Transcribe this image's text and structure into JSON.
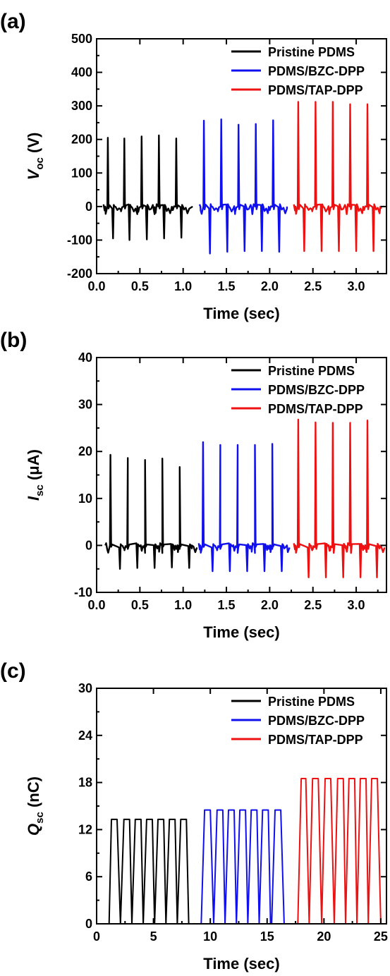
{
  "figure": {
    "panels": [
      {
        "label": "(a)",
        "ylabel_main": "V",
        "ylabel_sub": "oc",
        "ylabel_unit": " (V)",
        "xlabel": "Time (sec)"
      },
      {
        "label": "(b)",
        "ylabel_main": "I",
        "ylabel_sub": "sc",
        "ylabel_unit": " (μA)",
        "xlabel": "Time (sec)"
      },
      {
        "label": "(c)",
        "ylabel_main": "Q",
        "ylabel_sub": "sc",
        "ylabel_unit": " (nC)",
        "xlabel": "Time (sec)"
      }
    ]
  },
  "colors": {
    "Pristine PDMS": "#000000",
    "PDMS/BZC-DPP": "#1010ee",
    "PDMS/TAP-DPP": "#ee1111"
  },
  "chart_data": [
    {
      "type": "line",
      "xlabel": "Time (sec)",
      "ylabel": "Voc (V)",
      "xlim": [
        0.0,
        3.35
      ],
      "ylim": [
        -200,
        500
      ],
      "xticks": [
        "0.0",
        "0.5",
        "1.0",
        "1.5",
        "2.0",
        "2.5",
        "3.0"
      ],
      "xtick_values": [
        0.0,
        0.5,
        1.0,
        1.5,
        2.0,
        2.5,
        3.0
      ],
      "yticks": [
        "-200",
        "-100",
        "0",
        "100",
        "200",
        "300",
        "400",
        "500"
      ],
      "ytick_values": [
        -200,
        -100,
        0,
        100,
        200,
        300,
        400,
        500
      ],
      "legend": "top-right",
      "grid": false,
      "series": [
        {
          "name": "Pristine PDMS",
          "range": [
            0.1,
            1.11
          ],
          "pulses": [
            {
              "t": 0.13,
              "peak": 205,
              "neg_t": 0.19,
              "neg": -95
            },
            {
              "t": 0.32,
              "peak": 203,
              "neg_t": 0.38,
              "neg": -100
            },
            {
              "t": 0.52,
              "peak": 209,
              "neg_t": 0.58,
              "neg": -98
            },
            {
              "t": 0.72,
              "peak": 212,
              "neg_t": 0.78,
              "neg": -95
            },
            {
              "t": 0.92,
              "peak": 203,
              "neg_t": 0.98,
              "neg": -93
            }
          ]
        },
        {
          "name": "PDMS/BZC-DPP",
          "range": [
            1.2,
            2.2
          ],
          "pulses": [
            {
              "t": 1.24,
              "peak": 256,
              "neg_t": 1.31,
              "neg": -140
            },
            {
              "t": 1.44,
              "peak": 260,
              "neg_t": 1.51,
              "neg": -135
            },
            {
              "t": 1.64,
              "peak": 244,
              "neg_t": 1.71,
              "neg": -133
            },
            {
              "t": 1.84,
              "peak": 246,
              "neg_t": 1.91,
              "neg": -133
            },
            {
              "t": 2.04,
              "peak": 257,
              "neg_t": 2.11,
              "neg": -135
            }
          ]
        },
        {
          "name": "PDMS/TAP-DPP",
          "range": [
            2.3,
            3.28
          ],
          "pulses": [
            {
              "t": 2.33,
              "peak": 312,
              "neg_t": 2.4,
              "neg": -133
            },
            {
              "t": 2.53,
              "peak": 312,
              "neg_t": 2.6,
              "neg": -133
            },
            {
              "t": 2.73,
              "peak": 312,
              "neg_t": 2.8,
              "neg": -133
            },
            {
              "t": 2.93,
              "peak": 305,
              "neg_t": 3.0,
              "neg": -133
            },
            {
              "t": 3.13,
              "peak": 305,
              "neg_t": 3.2,
              "neg": -133
            }
          ]
        }
      ]
    },
    {
      "type": "line",
      "xlabel": "Time (sec)",
      "ylabel": "Isc (μA)",
      "xlim": [
        0.0,
        3.35
      ],
      "ylim": [
        -10,
        40
      ],
      "xticks": [
        "0.0",
        "0.5",
        "1.0",
        "1.5",
        "2.0",
        "2.5",
        "3.0"
      ],
      "xtick_values": [
        0.0,
        0.5,
        1.0,
        1.5,
        2.0,
        2.5,
        3.0
      ],
      "yticks": [
        "-10",
        "0",
        "10",
        "20",
        "30",
        "40"
      ],
      "ytick_values": [
        -10,
        0,
        10,
        20,
        30,
        40
      ],
      "legend": "top-right",
      "grid": false,
      "series": [
        {
          "name": "Pristine PDMS",
          "range": [
            0.1,
            1.1
          ],
          "pulses": [
            {
              "t": 0.16,
              "peak": 19.3,
              "neg_t": 0.27,
              "neg": -5.0
            },
            {
              "t": 0.36,
              "peak": 18.6,
              "neg_t": 0.47,
              "neg": -4.8
            },
            {
              "t": 0.56,
              "peak": 18.2,
              "neg_t": 0.67,
              "neg": -4.8
            },
            {
              "t": 0.76,
              "peak": 18.5,
              "neg_t": 0.87,
              "neg": -4.7
            },
            {
              "t": 0.96,
              "peak": 16.7,
              "neg_t": 1.07,
              "neg": -4.8
            }
          ]
        },
        {
          "name": "PDMS/BZC-DPP",
          "range": [
            1.2,
            2.2
          ],
          "pulses": [
            {
              "t": 1.23,
              "peak": 22.0,
              "neg_t": 1.34,
              "neg": -5.5
            },
            {
              "t": 1.43,
              "peak": 21.4,
              "neg_t": 1.54,
              "neg": -5.5
            },
            {
              "t": 1.63,
              "peak": 21.4,
              "neg_t": 1.74,
              "neg": -5.5
            },
            {
              "t": 1.83,
              "peak": 21.4,
              "neg_t": 1.94,
              "neg": -5.5
            },
            {
              "t": 2.03,
              "peak": 21.6,
              "neg_t": 2.14,
              "neg": -5.5
            }
          ]
        },
        {
          "name": "PDMS/TAP-DPP",
          "range": [
            2.3,
            3.28
          ],
          "pulses": [
            {
              "t": 2.33,
              "peak": 26.8,
              "neg_t": 2.45,
              "neg": -6.8
            },
            {
              "t": 2.53,
              "peak": 26.2,
              "neg_t": 2.65,
              "neg": -6.8
            },
            {
              "t": 2.73,
              "peak": 26.1,
              "neg_t": 2.85,
              "neg": -6.8
            },
            {
              "t": 2.93,
              "peak": 26.1,
              "neg_t": 3.05,
              "neg": -6.8
            },
            {
              "t": 3.13,
              "peak": 26.6,
              "neg_t": 3.24,
              "neg": -6.8
            }
          ]
        }
      ]
    },
    {
      "type": "line",
      "xlabel": "Time (sec)",
      "ylabel": "Qsc (nC)",
      "xlim": [
        0,
        25.5
      ],
      "ylim": [
        0,
        30
      ],
      "xticks": [
        "0",
        "5",
        "10",
        "15",
        "20",
        "25"
      ],
      "xtick_values": [
        0,
        5,
        10,
        15,
        20,
        25
      ],
      "yticks": [
        "0",
        "6",
        "12",
        "18",
        "24",
        "30"
      ],
      "ytick_values": [
        0,
        6,
        12,
        18,
        24,
        30
      ],
      "legend": "top-right",
      "grid": false,
      "series": [
        {
          "name": "Pristine PDMS",
          "plateau": 13.3,
          "cycles": [
            {
              "rise": 1.1,
              "top": 1.3,
              "fall_start": 1.8,
              "zero": 2.1
            },
            {
              "rise": 2.1,
              "top": 2.4,
              "fall_start": 2.9,
              "zero": 3.1
            },
            {
              "rise": 3.1,
              "top": 3.4,
              "fall_start": 3.9,
              "zero": 4.1
            },
            {
              "rise": 4.1,
              "top": 4.4,
              "fall_start": 4.9,
              "zero": 5.1
            },
            {
              "rise": 5.1,
              "top": 5.4,
              "fall_start": 5.9,
              "zero": 6.1
            },
            {
              "rise": 6.1,
              "top": 6.4,
              "fall_start": 6.9,
              "zero": 7.1
            },
            {
              "rise": 7.1,
              "top": 7.4,
              "fall_start": 7.9,
              "zero": 8.1
            }
          ]
        },
        {
          "name": "PDMS/BZC-DPP",
          "plateau": 14.5,
          "cycles": [
            {
              "rise": 9.2,
              "top": 9.5,
              "fall_start": 10.0,
              "zero": 10.3
            },
            {
              "rise": 10.3,
              "top": 10.6,
              "fall_start": 11.1,
              "zero": 11.3
            },
            {
              "rise": 11.3,
              "top": 11.6,
              "fall_start": 12.1,
              "zero": 12.3
            },
            {
              "rise": 12.3,
              "top": 12.6,
              "fall_start": 13.1,
              "zero": 13.3
            },
            {
              "rise": 13.3,
              "top": 13.6,
              "fall_start": 14.1,
              "zero": 14.3
            },
            {
              "rise": 14.3,
              "top": 14.6,
              "fall_start": 15.1,
              "zero": 15.3
            },
            {
              "rise": 15.4,
              "top": 15.7,
              "fall_start": 16.2,
              "zero": 16.5
            }
          ]
        },
        {
          "name": "PDMS/TAP-DPP",
          "plateau": 18.5,
          "cycles": [
            {
              "rise": 17.7,
              "top": 18.0,
              "fall_start": 18.4,
              "zero": 18.7
            },
            {
              "rise": 18.7,
              "top": 19.0,
              "fall_start": 19.5,
              "zero": 19.8
            },
            {
              "rise": 19.8,
              "top": 20.1,
              "fall_start": 20.6,
              "zero": 20.9
            },
            {
              "rise": 20.9,
              "top": 21.2,
              "fall_start": 21.7,
              "zero": 21.9
            },
            {
              "rise": 21.9,
              "top": 22.2,
              "fall_start": 22.7,
              "zero": 22.9
            },
            {
              "rise": 22.9,
              "top": 23.2,
              "fall_start": 23.7,
              "zero": 23.9
            },
            {
              "rise": 23.9,
              "top": 24.2,
              "fall_start": 24.7,
              "zero": 25.0
            }
          ]
        }
      ]
    }
  ]
}
